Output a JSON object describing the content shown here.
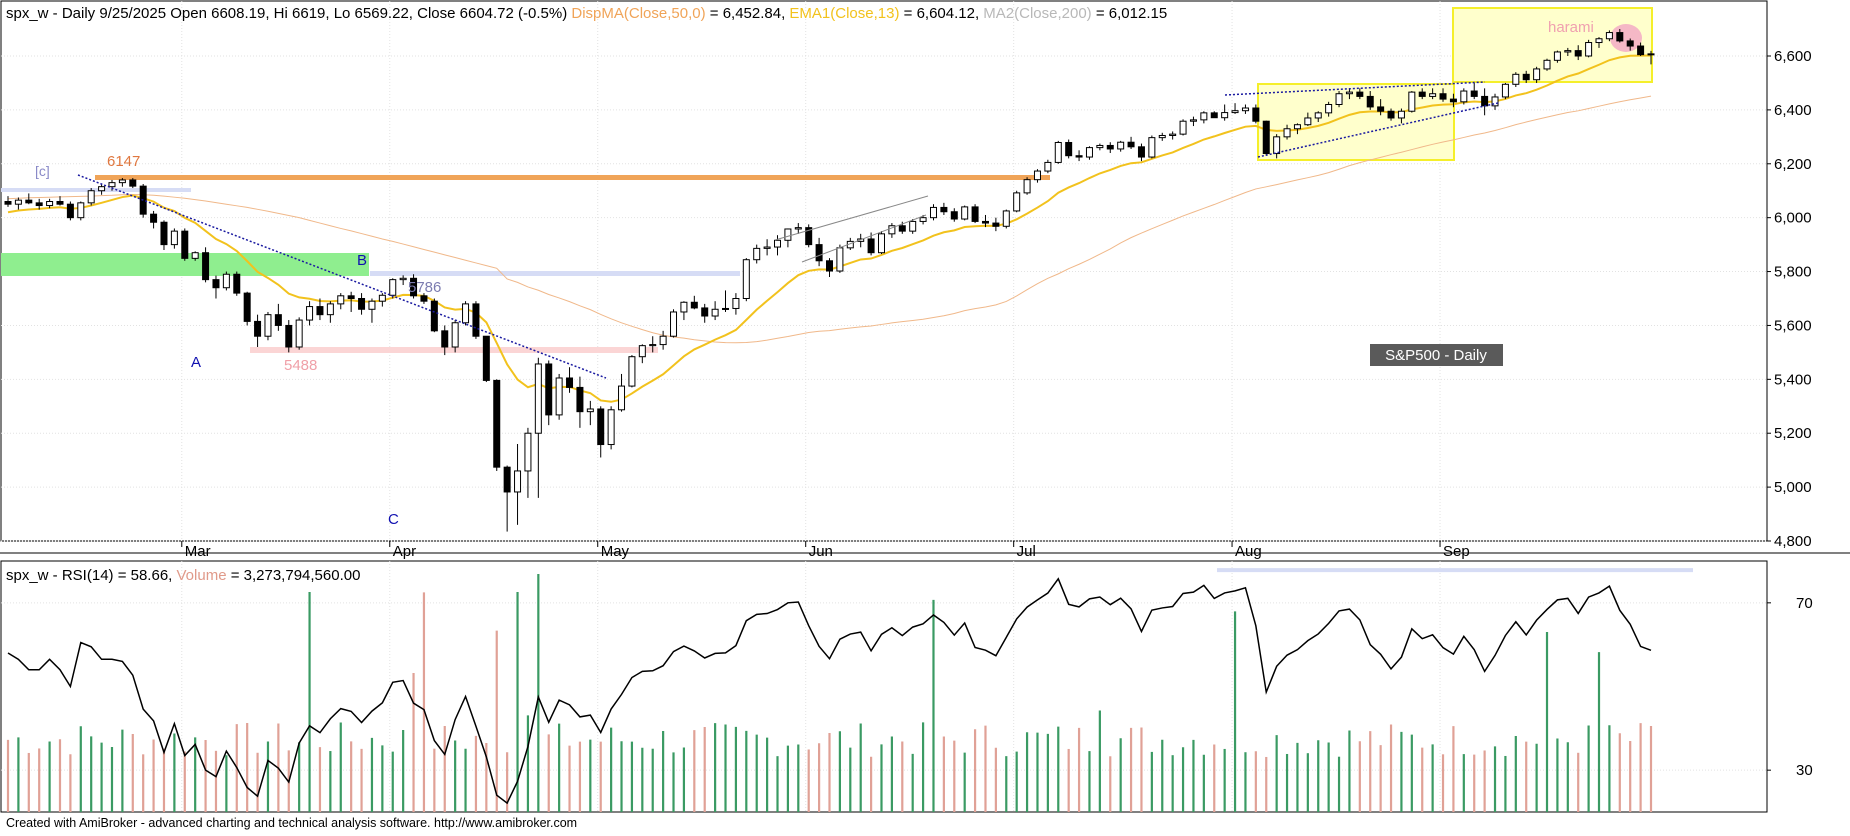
{
  "header": {
    "title_main": "spx_w - Daily 9/25/2025 Open 6608.19, Hi 6619, Lo 6569.22, Close 6604.72 (-0.5%)",
    "ind_dispma": "DispMA(Close,50,0)",
    "val_dispma": " = 6,452.84,",
    "ind_ema": "EMA1(Close,13)",
    "val_ema": " = 6,604.12,",
    "ind_ma2": "MA2(Close,200)",
    "val_ma2": " = 6,012.15"
  },
  "rsi_header": {
    "rsi_label": "spx_w - RSI(14) = 58.66,",
    "volume_label": " Volume",
    "volume_value": " = 3,273,794,560.00"
  },
  "footer": "Created with AmiBroker - advanced charting and technical analysis software. http://www.amibroker.com",
  "annotations": {
    "c_label": "[c]",
    "level_6147": "6147",
    "label_B": "B",
    "level_5786": "5786",
    "label_A": "A",
    "level_5488": "5488",
    "label_C": "C",
    "harami": "harami",
    "sp500_box": "S&P500 - Daily"
  },
  "colors": {
    "bull": "#ffffff",
    "bear": "#000000",
    "ema": "#f2c21d",
    "ma50": "#f0b88a",
    "rsi": "#000000",
    "vol_up": "#3a9a63",
    "vol_down": "#e0a196",
    "level_orange": "#f0a458",
    "green_zone": "#8fee8f",
    "yellow_box": "#ffff99",
    "trendline": "#1a1aa0"
  },
  "chart_data": {
    "type": "candlestick",
    "title": "spx_w - Daily 9/25/2025",
    "ylim": [
      4800,
      6800
    ],
    "y_ticks": [
      4800,
      5000,
      5200,
      5400,
      5600,
      5800,
      6000,
      6200,
      6400,
      6600
    ],
    "y_tick_labels": [
      "4,800",
      "5,000",
      "5,200",
      "5,400",
      "5,600",
      "5,800",
      "6,000",
      "6,200",
      "6,400",
      "6,600"
    ],
    "x_month_labels": [
      "Mar",
      "Apr",
      "May",
      "Jun",
      "Jul",
      "Aug",
      "Sep"
    ],
    "x_month_start_index": [
      17,
      37,
      57,
      77,
      97,
      118,
      138
    ],
    "bar_count": 155,
    "ohlc": [
      [
        6060,
        6080,
        6040,
        6050
      ],
      [
        6050,
        6075,
        6030,
        6065
      ],
      [
        6065,
        6090,
        6050,
        6055
      ],
      [
        6055,
        6070,
        6030,
        6045
      ],
      [
        6045,
        6070,
        6035,
        6060
      ],
      [
        6060,
        6080,
        6045,
        6050
      ],
      [
        6050,
        6060,
        5990,
        6000
      ],
      [
        6000,
        6060,
        5990,
        6055
      ],
      [
        6055,
        6110,
        6045,
        6100
      ],
      [
        6100,
        6125,
        6085,
        6115
      ],
      [
        6115,
        6140,
        6100,
        6130
      ],
      [
        6130,
        6147,
        6115,
        6140
      ],
      [
        6140,
        6147,
        6110,
        6117
      ],
      [
        6117,
        6125,
        6000,
        6013
      ],
      [
        6013,
        6025,
        5960,
        5983
      ],
      [
        5983,
        5990,
        5880,
        5900
      ],
      [
        5900,
        5960,
        5885,
        5950
      ],
      [
        5950,
        5960,
        5840,
        5849
      ],
      [
        5849,
        5875,
        5840,
        5870
      ],
      [
        5870,
        5890,
        5760,
        5770
      ],
      [
        5770,
        5785,
        5700,
        5740
      ],
      [
        5740,
        5800,
        5730,
        5790
      ],
      [
        5790,
        5800,
        5710,
        5720
      ],
      [
        5720,
        5725,
        5600,
        5615
      ],
      [
        5615,
        5640,
        5520,
        5560
      ],
      [
        5560,
        5650,
        5545,
        5640
      ],
      [
        5640,
        5680,
        5580,
        5600
      ],
      [
        5600,
        5620,
        5500,
        5520
      ],
      [
        5520,
        5630,
        5510,
        5620
      ],
      [
        5620,
        5690,
        5600,
        5670
      ],
      [
        5670,
        5700,
        5620,
        5640
      ],
      [
        5640,
        5690,
        5610,
        5680
      ],
      [
        5680,
        5720,
        5660,
        5710
      ],
      [
        5710,
        5725,
        5650,
        5700
      ],
      [
        5700,
        5720,
        5640,
        5660
      ],
      [
        5660,
        5700,
        5610,
        5690
      ],
      [
        5690,
        5720,
        5670,
        5712
      ],
      [
        5712,
        5775,
        5700,
        5770
      ],
      [
        5770,
        5786,
        5750,
        5775
      ],
      [
        5775,
        5790,
        5700,
        5710
      ],
      [
        5710,
        5720,
        5680,
        5690
      ],
      [
        5690,
        5700,
        5575,
        5580
      ],
      [
        5580,
        5600,
        5490,
        5520
      ],
      [
        5520,
        5620,
        5500,
        5610
      ],
      [
        5610,
        5690,
        5600,
        5680
      ],
      [
        5680,
        5690,
        5550,
        5560
      ],
      [
        5560,
        5560,
        5390,
        5396
      ],
      [
        5396,
        5400,
        5060,
        5074
      ],
      [
        5074,
        5080,
        4835,
        4982
      ],
      [
        4982,
        5160,
        4860,
        5060
      ],
      [
        5060,
        5220,
        4960,
        5200
      ],
      [
        5200,
        5480,
        4960,
        5457
      ],
      [
        5457,
        5470,
        5230,
        5268
      ],
      [
        5268,
        5420,
        5250,
        5405
      ],
      [
        5405,
        5445,
        5350,
        5370
      ],
      [
        5370,
        5410,
        5220,
        5280
      ],
      [
        5280,
        5320,
        5230,
        5290
      ],
      [
        5290,
        5300,
        5110,
        5158
      ],
      [
        5158,
        5300,
        5140,
        5287
      ],
      [
        5287,
        5420,
        5280,
        5375
      ],
      [
        5375,
        5490,
        5370,
        5484
      ],
      [
        5484,
        5530,
        5460,
        5525
      ],
      [
        5525,
        5560,
        5500,
        5529
      ],
      [
        5529,
        5580,
        5510,
        5560
      ],
      [
        5560,
        5660,
        5555,
        5650
      ],
      [
        5650,
        5690,
        5620,
        5686
      ],
      [
        5686,
        5710,
        5660,
        5665
      ],
      [
        5665,
        5680,
        5610,
        5635
      ],
      [
        5635,
        5690,
        5620,
        5660
      ],
      [
        5660,
        5730,
        5650,
        5663
      ],
      [
        5663,
        5720,
        5640,
        5700
      ],
      [
        5700,
        5850,
        5690,
        5844
      ],
      [
        5844,
        5900,
        5830,
        5886
      ],
      [
        5886,
        5920,
        5860,
        5891
      ],
      [
        5891,
        5935,
        5860,
        5916
      ],
      [
        5916,
        5960,
        5890,
        5958
      ],
      [
        5958,
        5980,
        5940,
        5963
      ],
      [
        5963,
        5975,
        5890,
        5900
      ],
      [
        5900,
        5925,
        5820,
        5840
      ],
      [
        5840,
        5850,
        5780,
        5802
      ],
      [
        5802,
        5900,
        5795,
        5888
      ],
      [
        5888,
        5925,
        5880,
        5912
      ],
      [
        5912,
        5940,
        5890,
        5921
      ],
      [
        5921,
        5945,
        5860,
        5870
      ],
      [
        5870,
        5950,
        5865,
        5940
      ],
      [
        5940,
        5980,
        5925,
        5970
      ],
      [
        5970,
        5985,
        5940,
        5950
      ],
      [
        5950,
        5995,
        5940,
        5986
      ],
      [
        5986,
        6010,
        5975,
        6000
      ],
      [
        6000,
        6050,
        5990,
        6038
      ],
      [
        6038,
        6055,
        6010,
        6022
      ],
      [
        6022,
        6035,
        5985,
        5995
      ],
      [
        5995,
        6045,
        5990,
        6040
      ],
      [
        6040,
        6050,
        5980,
        5986
      ],
      [
        5986,
        6010,
        5965,
        5980
      ],
      [
        5980,
        6000,
        5950,
        5968
      ],
      [
        5968,
        6030,
        5960,
        6025
      ],
      [
        6025,
        6100,
        6020,
        6092
      ],
      [
        6092,
        6150,
        6085,
        6141
      ],
      [
        6141,
        6180,
        6130,
        6173
      ],
      [
        6173,
        6215,
        6165,
        6205
      ],
      [
        6205,
        6285,
        6200,
        6279
      ],
      [
        6279,
        6290,
        6220,
        6230
      ],
      [
        6230,
        6250,
        6210,
        6225
      ],
      [
        6225,
        6265,
        6215,
        6260
      ],
      [
        6260,
        6275,
        6250,
        6268
      ],
      [
        6268,
        6280,
        6240,
        6255
      ],
      [
        6255,
        6285,
        6245,
        6280
      ],
      [
        6280,
        6300,
        6255,
        6263
      ],
      [
        6263,
        6275,
        6210,
        6225
      ],
      [
        6225,
        6305,
        6220,
        6297
      ],
      [
        6297,
        6315,
        6285,
        6305
      ],
      [
        6305,
        6320,
        6290,
        6310
      ],
      [
        6310,
        6365,
        6305,
        6358
      ],
      [
        6358,
        6375,
        6340,
        6363
      ],
      [
        6363,
        6395,
        6350,
        6389
      ],
      [
        6389,
        6395,
        6370,
        6371
      ],
      [
        6371,
        6420,
        6360,
        6390
      ],
      [
        6390,
        6425,
        6385,
        6397
      ],
      [
        6397,
        6420,
        6385,
        6407
      ],
      [
        6407,
        6420,
        6350,
        6358
      ],
      [
        6358,
        6360,
        6230,
        6238
      ],
      [
        6238,
        6310,
        6220,
        6300
      ],
      [
        6300,
        6345,
        6290,
        6330
      ],
      [
        6330,
        6350,
        6310,
        6345
      ],
      [
        6345,
        6390,
        6340,
        6370
      ],
      [
        6370,
        6395,
        6355,
        6389
      ],
      [
        6389,
        6430,
        6375,
        6420
      ],
      [
        6420,
        6470,
        6410,
        6460
      ],
      [
        6460,
        6480,
        6440,
        6466
      ],
      [
        6466,
        6480,
        6440,
        6450
      ],
      [
        6450,
        6470,
        6400,
        6411
      ],
      [
        6411,
        6440,
        6380,
        6395
      ],
      [
        6395,
        6405,
        6360,
        6370
      ],
      [
        6370,
        6405,
        6350,
        6395
      ],
      [
        6395,
        6470,
        6390,
        6466
      ],
      [
        6466,
        6480,
        6440,
        6450
      ],
      [
        6450,
        6480,
        6440,
        6460
      ],
      [
        6460,
        6480,
        6430,
        6440
      ],
      [
        6440,
        6460,
        6410,
        6430
      ],
      [
        6430,
        6480,
        6420,
        6470
      ],
      [
        6470,
        6500,
        6440,
        6450
      ],
      [
        6450,
        6480,
        6380,
        6415
      ],
      [
        6415,
        6460,
        6400,
        6448
      ],
      [
        6448,
        6500,
        6440,
        6495
      ],
      [
        6495,
        6540,
        6485,
        6532
      ],
      [
        6532,
        6545,
        6500,
        6512
      ],
      [
        6512,
        6560,
        6500,
        6552
      ],
      [
        6552,
        6590,
        6545,
        6584
      ],
      [
        6584,
        6620,
        6575,
        6615
      ],
      [
        6615,
        6630,
        6600,
        6620
      ],
      [
        6620,
        6640,
        6585,
        6600
      ],
      [
        6600,
        6660,
        6595,
        6650
      ],
      [
        6650,
        6670,
        6630,
        6664
      ],
      [
        6664,
        6695,
        6655,
        6687
      ],
      [
        6687,
        6700,
        6650,
        6656
      ],
      [
        6656,
        6665,
        6620,
        6637
      ],
      [
        6637,
        6650,
        6600,
        6605
      ],
      [
        6608,
        6619,
        6569,
        6605
      ]
    ],
    "indicators": {
      "ema13_last": 6604.12,
      "ma50_last": 6452.84,
      "ma200_last": 6012.15
    },
    "rsi": {
      "label": "RSI(14)",
      "last": 58.66,
      "ylim": [
        20,
        80
      ],
      "y_ticks": [
        30,
        70
      ]
    },
    "volume_last": 3273794560,
    "levels": [
      {
        "label": "6147",
        "value": 6147
      },
      {
        "label": "5786",
        "value": 5786
      },
      {
        "label": "5488",
        "value": 5488
      }
    ],
    "wave_labels": [
      {
        "label": "[c]",
        "value": 6140
      },
      {
        "label": "A",
        "value": 5488
      },
      {
        "label": "B",
        "value": 5786
      },
      {
        "label": "C",
        "value": 4835
      }
    ]
  }
}
